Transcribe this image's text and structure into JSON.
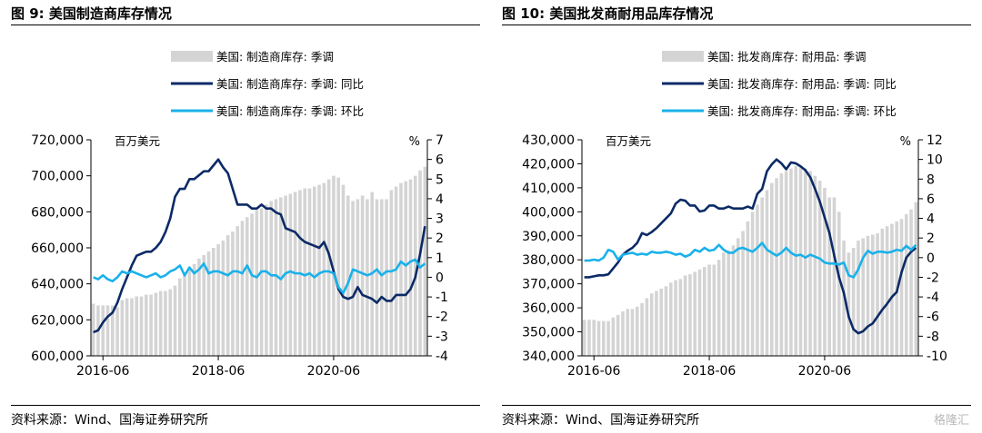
{
  "footer": {
    "source": "资料来源：Wind、国海证券研究所",
    "watermark": "格隆汇"
  },
  "chart_data": [
    {
      "type": "bar+line",
      "title": "图 9:  美国制造商库存情况",
      "unit_left": "百万美元",
      "unit_right": "%",
      "ylim_left": [
        600000,
        720000
      ],
      "yticks_left": [
        "600,000",
        "620,000",
        "640,000",
        "660,000",
        "680,000",
        "700,000",
        "720,000"
      ],
      "ylim_right": [
        -4,
        7
      ],
      "yticks_right": [
        "-4",
        "-3",
        "-2",
        "-1",
        "0",
        "1",
        "2",
        "3",
        "4",
        "5",
        "6",
        "7"
      ],
      "xticks": [
        "2016-06",
        "2018-06",
        "2020-06"
      ],
      "start": "2016-04",
      "legend_placement": "top-center",
      "bar_color": "#d4d4d4",
      "series": [
        {
          "name": "美国: 制造商库存: 季调",
          "kind": "bar",
          "axis": "left",
          "color": "#d4d4d4",
          "values": [
            629000,
            628000,
            628000,
            628000,
            628000,
            627000,
            631000,
            632000,
            632000,
            633000,
            633000,
            634000,
            634000,
            635000,
            636000,
            636000,
            637000,
            639000,
            643000,
            645000,
            648000,
            651000,
            654000,
            656000,
            658000,
            660000,
            662000,
            664000,
            667000,
            669000,
            672000,
            675000,
            677000,
            679000,
            681000,
            682000,
            684000,
            686000,
            687000,
            688000,
            689000,
            690000,
            691000,
            692000,
            693000,
            693000,
            694000,
            695000,
            696000,
            698000,
            700000,
            699000,
            695000,
            689000,
            686000,
            687000,
            689000,
            687000,
            691000,
            687000,
            687000,
            687000,
            692000,
            694000,
            696000,
            697000,
            698000,
            700000,
            703000,
            705000
          ]
        },
        {
          "name": "美国: 制造商库存: 季调: 同比",
          "kind": "line",
          "axis": "right",
          "color": "#0c2a66",
          "values": [
            -2.8,
            -2.7,
            -2.3,
            -2.0,
            -1.8,
            -1.3,
            -0.6,
            0.0,
            0.6,
            1.1,
            1.2,
            1.3,
            1.3,
            1.5,
            1.8,
            2.3,
            3.0,
            4.1,
            4.5,
            4.5,
            5.0,
            5.0,
            5.2,
            5.4,
            5.4,
            5.7,
            6.0,
            5.6,
            5.3,
            4.5,
            3.7,
            3.7,
            3.7,
            3.5,
            3.5,
            3.7,
            3.5,
            3.5,
            3.3,
            3.2,
            2.5,
            2.4,
            2.3,
            2.0,
            1.8,
            1.7,
            1.6,
            1.5,
            1.8,
            1.2,
            0.3,
            -0.6,
            -1.0,
            -1.1,
            -1.0,
            -0.5,
            -0.9,
            -1.0,
            -1.1,
            -1.3,
            -1.0,
            -1.2,
            -1.2,
            -0.9,
            -0.9,
            -0.9,
            -0.6,
            0.0,
            1.2,
            2.6
          ]
        },
        {
          "name": "美国: 制造商库存: 季调: 环比",
          "kind": "line",
          "axis": "right",
          "color": "#1ab1ea",
          "values": [
            0.0,
            -0.1,
            0.1,
            -0.1,
            -0.2,
            0.0,
            0.3,
            0.2,
            0.3,
            0.2,
            0.1,
            0.0,
            0.1,
            0.2,
            0.0,
            0.1,
            0.3,
            0.4,
            0.6,
            0.1,
            0.5,
            0.2,
            0.4,
            0.7,
            0.2,
            0.3,
            0.3,
            0.2,
            0.1,
            0.3,
            0.3,
            0.2,
            0.6,
            0.1,
            0.0,
            0.3,
            0.3,
            0.1,
            0.1,
            -0.1,
            0.2,
            0.3,
            0.2,
            0.2,
            0.1,
            0.2,
            0.0,
            0.2,
            0.3,
            0.3,
            0.2,
            -0.5,
            -0.8,
            -0.3,
            0.4,
            0.3,
            0.2,
            0.1,
            0.2,
            0.4,
            0.1,
            0.3,
            0.3,
            0.4,
            0.8,
            0.6,
            0.8,
            0.9,
            0.5,
            0.7
          ]
        }
      ]
    },
    {
      "type": "bar+line",
      "title": "图 10:  美国批发商耐用品库存情况",
      "unit_left": "百万美元",
      "unit_right": "%",
      "ylim_left": [
        340000,
        430000
      ],
      "yticks_left": [
        "340,000",
        "350,000",
        "360,000",
        "370,000",
        "380,000",
        "390,000",
        "400,000",
        "410,000",
        "420,000",
        "430,000"
      ],
      "ylim_right": [
        -10,
        12
      ],
      "yticks_right": [
        "-10",
        "-8",
        "-6",
        "-4",
        "-2",
        "0",
        "2",
        "4",
        "6",
        "8",
        "10",
        "12"
      ],
      "xticks": [
        "2016-06",
        "2018-06",
        "2020-06"
      ],
      "start": "2016-04",
      "legend_placement": "top-center",
      "bar_color": "#d4d4d4",
      "series": [
        {
          "name": "美国: 批发商库存: 耐用品: 季调",
          "kind": "bar",
          "axis": "left",
          "color": "#d4d4d4",
          "values": [
            355000,
            355000,
            355000,
            354500,
            354500,
            354500,
            356000,
            357000,
            358500,
            359500,
            359500,
            360500,
            362000,
            364000,
            366000,
            367000,
            368000,
            369000,
            370500,
            371500,
            372000,
            373500,
            374000,
            375000,
            376000,
            377000,
            378000,
            378000,
            380000,
            383000,
            384000,
            386000,
            389000,
            392000,
            396000,
            400000,
            403000,
            406000,
            409000,
            412000,
            414000,
            416000,
            417000,
            418000,
            419000,
            419000,
            418000,
            417000,
            415000,
            413000,
            410000,
            406000,
            406000,
            400000,
            388000,
            383000,
            385000,
            388000,
            389000,
            390000,
            390500,
            391000,
            393000,
            394000,
            395000,
            396000,
            397000,
            399000,
            401000,
            404000
          ]
        },
        {
          "name": "美国: 批发商库存: 耐用品: 季调: 同比",
          "kind": "line",
          "axis": "right",
          "color": "#0c2a66",
          "values": [
            -2.0,
            -2.0,
            -1.9,
            -1.8,
            -1.8,
            -1.7,
            -1.1,
            -0.5,
            0.3,
            0.7,
            1.0,
            1.5,
            2.5,
            2.3,
            2.6,
            3.0,
            3.5,
            4.0,
            4.5,
            5.5,
            5.9,
            5.8,
            5.3,
            5.3,
            4.7,
            4.8,
            5.3,
            5.3,
            5.0,
            5.0,
            5.2,
            5.0,
            5.0,
            5.0,
            5.2,
            5.0,
            6.5,
            7.0,
            8.8,
            9.5,
            10.0,
            9.6,
            9.0,
            9.7,
            9.6,
            9.3,
            8.9,
            8.2,
            7.0,
            5.7,
            4.1,
            2.5,
            0.2,
            -2.0,
            -3.6,
            -6.0,
            -7.3,
            -7.7,
            -7.5,
            -7.0,
            -6.7,
            -6.0,
            -5.3,
            -4.7,
            -4.0,
            -3.5,
            -1.5,
            0.0,
            0.6,
            1.0
          ]
        },
        {
          "name": "美国: 批发商库存: 耐用品: 季调: 环比",
          "kind": "line",
          "axis": "right",
          "color": "#1ab1ea",
          "values": [
            -0.3,
            -0.3,
            -0.2,
            -0.3,
            0.0,
            0.8,
            0.6,
            -0.2,
            0.3,
            0.4,
            0.5,
            0.3,
            0.4,
            0.3,
            0.6,
            0.5,
            0.5,
            0.6,
            0.5,
            0.3,
            0.4,
            0.1,
            0.3,
            0.8,
            0.6,
            1.0,
            0.7,
            0.8,
            1.3,
            0.8,
            0.5,
            0.5,
            0.9,
            1.0,
            0.8,
            0.6,
            1.0,
            1.5,
            0.8,
            0.5,
            0.2,
            0.5,
            1.0,
            0.5,
            0.2,
            0.3,
            0.0,
            0.3,
            0.1,
            -0.1,
            -0.5,
            -0.6,
            -0.6,
            -0.7,
            -0.5,
            -1.8,
            -2.0,
            -1.2,
            0.0,
            0.7,
            0.4,
            0.6,
            0.6,
            0.5,
            0.6,
            0.8,
            0.7,
            1.2,
            0.8,
            1.3
          ]
        }
      ]
    }
  ]
}
